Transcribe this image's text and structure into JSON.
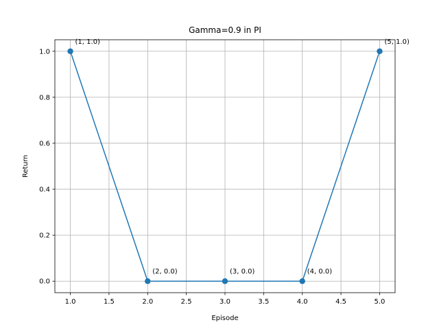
{
  "chart_data": {
    "type": "line",
    "title": "Gamma=0.9 in PI",
    "xlabel": "Episode",
    "ylabel": "Return",
    "xlim": [
      0.8,
      5.2
    ],
    "ylim": [
      -0.05,
      1.05
    ],
    "grid": true,
    "x_ticks": [
      "1.0",
      "1.5",
      "2.0",
      "2.5",
      "3.0",
      "3.5",
      "4.0",
      "4.5",
      "5.0"
    ],
    "y_ticks": [
      "0.0",
      "0.2",
      "0.4",
      "0.6",
      "0.8",
      "1.0"
    ],
    "series": [
      {
        "color": "#1f77b4",
        "marker": "circle",
        "x": [
          1,
          2,
          3,
          4,
          5
        ],
        "y": [
          1.0,
          0.0,
          0.0,
          0.0,
          1.0
        ]
      }
    ],
    "annotations": [
      "(1, 1.0)",
      "(2, 0.0)",
      "(3, 0.0)",
      "(4, 0.0)",
      "(5, 1.0)"
    ]
  }
}
